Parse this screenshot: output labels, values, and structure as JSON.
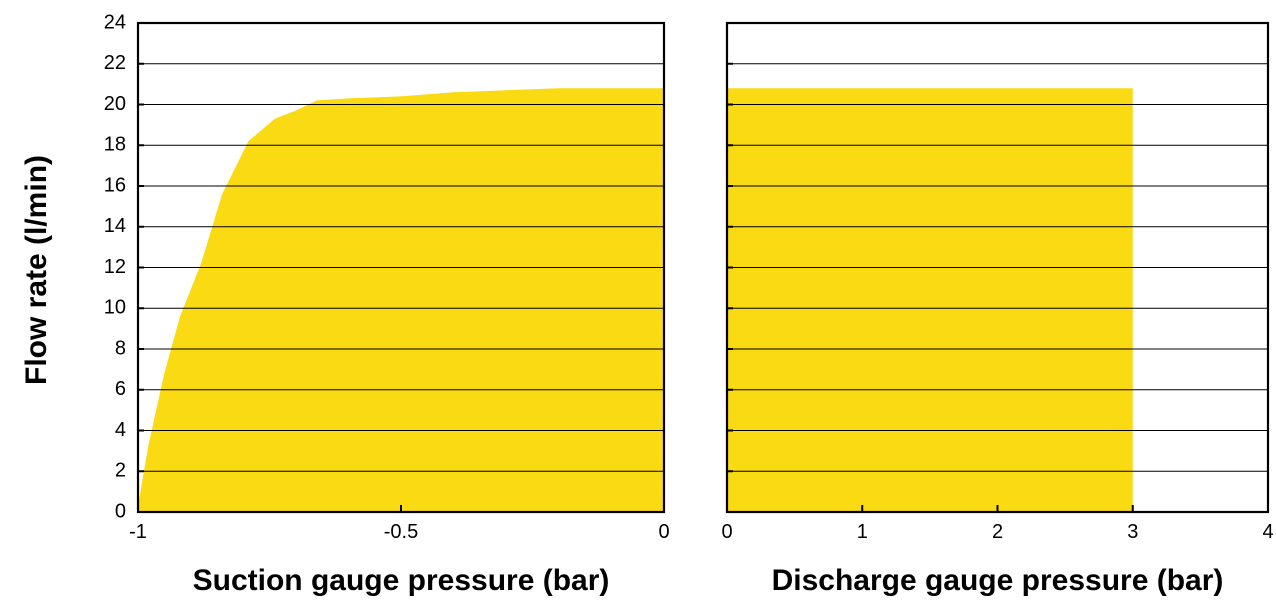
{
  "ylabel": "Flow rate (l/min)",
  "fill_color": "#F9DA13",
  "grid_color": "#000000",
  "chart_data": [
    {
      "type": "area",
      "xlabel": "Suction gauge pressure (bar)",
      "xlim": [
        -1,
        0
      ],
      "ylim": [
        0,
        24
      ],
      "xticks": [
        -1,
        -0.5,
        0
      ],
      "xtick_labels": [
        "-1",
        "-0.5",
        "0"
      ],
      "yticks": [
        0,
        2,
        4,
        6,
        8,
        10,
        12,
        14,
        16,
        18,
        20,
        22,
        24
      ],
      "ytick_labels": [
        "0",
        "2",
        "4",
        "6",
        "8",
        "10",
        "12",
        "14",
        "16",
        "18",
        "20",
        "22",
        "24"
      ],
      "grid": true,
      "x": [
        -1.0,
        -0.98,
        -0.95,
        -0.92,
        -0.88,
        -0.84,
        -0.79,
        -0.74,
        -0.7,
        -0.66,
        -0.6,
        -0.5,
        -0.4,
        -0.3,
        -0.2,
        -0.1,
        0.0
      ],
      "y": [
        0.3,
        3.3,
        6.8,
        9.6,
        12.2,
        15.6,
        18.2,
        19.3,
        19.7,
        20.2,
        20.3,
        20.4,
        20.6,
        20.7,
        20.8,
        20.8,
        20.8
      ]
    },
    {
      "type": "area",
      "xlabel": "Discharge gauge pressure (bar)",
      "xlim": [
        0,
        4
      ],
      "ylim": [
        0,
        24
      ],
      "xticks": [
        0,
        1,
        2,
        3,
        4
      ],
      "xtick_labels": [
        "0",
        "1",
        "2",
        "3",
        "4"
      ],
      "yticks": [
        0,
        2,
        4,
        6,
        8,
        10,
        12,
        14,
        16,
        18,
        20,
        22,
        24
      ],
      "grid": true,
      "x": [
        0,
        3
      ],
      "y": [
        20.8,
        20.8
      ]
    }
  ]
}
